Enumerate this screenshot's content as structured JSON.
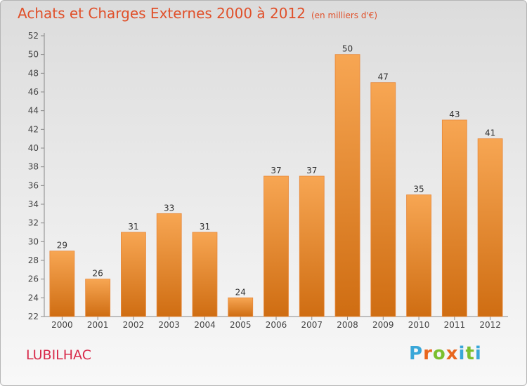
{
  "header": {
    "title": "Achats et Charges Externes 2000 à 2012",
    "subtitle": "(en milliers d'€)"
  },
  "commune": "LUBILHAC",
  "brand": {
    "letters": [
      "P",
      "r",
      "o",
      "x",
      "i",
      "t",
      "i"
    ],
    "colors": [
      "#3aa7d8",
      "#e8661e",
      "#7bbf2e",
      "#e8661e",
      "#3aa7d8",
      "#7bbf2e",
      "#3aa7d8"
    ]
  },
  "colors": {
    "bar_top": "#f7a653",
    "bar_bottom": "#cf6d12",
    "title": "#e0502a"
  },
  "chart_data": {
    "type": "bar",
    "title": "Achats et Charges Externes 2000 à 2012",
    "categories": [
      "2000",
      "2001",
      "2002",
      "2003",
      "2004",
      "2005",
      "2006",
      "2007",
      "2008",
      "2009",
      "2010",
      "2011",
      "2012"
    ],
    "values": [
      29,
      26,
      31,
      33,
      31,
      24,
      37,
      37,
      50,
      47,
      35,
      43,
      41
    ],
    "ylim": [
      22,
      52
    ],
    "yticks": [
      22,
      24,
      26,
      28,
      30,
      32,
      34,
      36,
      38,
      40,
      42,
      44,
      46,
      48,
      50,
      52
    ],
    "grid": false,
    "data_labels": true
  }
}
